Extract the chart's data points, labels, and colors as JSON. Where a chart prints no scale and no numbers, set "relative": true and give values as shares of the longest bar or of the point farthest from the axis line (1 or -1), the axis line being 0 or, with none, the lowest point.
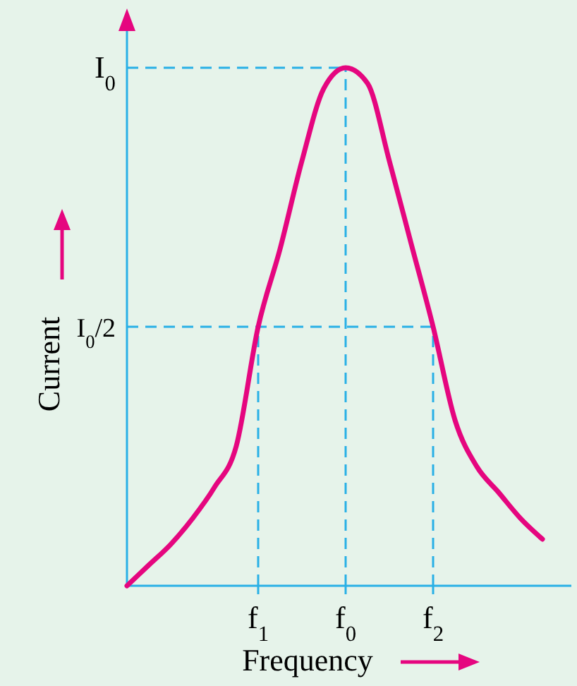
{
  "chart_data": {
    "type": "line",
    "relative": true,
    "xlabel": "Frequency",
    "ylabel": "Current",
    "categories": [
      null,
      null,
      null,
      null,
      null,
      null,
      "f$_{1}$",
      null,
      null,
      null,
      "f$_{0}$",
      null,
      null,
      null,
      "f$_{2}$",
      null,
      null,
      null,
      null,
      null
    ],
    "series": [
      {
        "color": "#e5067f",
        "values": [
          0,
          0.04,
          0.08,
          0.13,
          0.19,
          0.27,
          0.5,
          0.65,
          0.82,
          0.96,
          1,
          0.97,
          0.82,
          0.66,
          0.5,
          0.32,
          0.23,
          0.18,
          0.13,
          0.09
        ]
      }
    ],
    "ref_lines": [
      {
        "axis": "y",
        "value": 1,
        "label": "I$_{0}$",
        "color": "#29b0e6",
        "line_style": "dashed"
      },
      {
        "axis": "y",
        "value": 0.5,
        "label": "I$_{0}$/2",
        "color": "#29b0e6",
        "line_style": "dashed"
      },
      {
        "axis": "x",
        "value": "f$_{1}$",
        "color": "#29b0e6",
        "line_style": "dashed"
      },
      {
        "axis": "x",
        "value": "f$_{0}$",
        "color": "#29b0e6",
        "line_style": "dashed"
      },
      {
        "axis": "x",
        "value": "f$_{2}$",
        "color": "#29b0e6",
        "line_style": "dashed"
      }
    ],
    "grid": false,
    "marker": "none",
    "line_style": "solid"
  }
}
